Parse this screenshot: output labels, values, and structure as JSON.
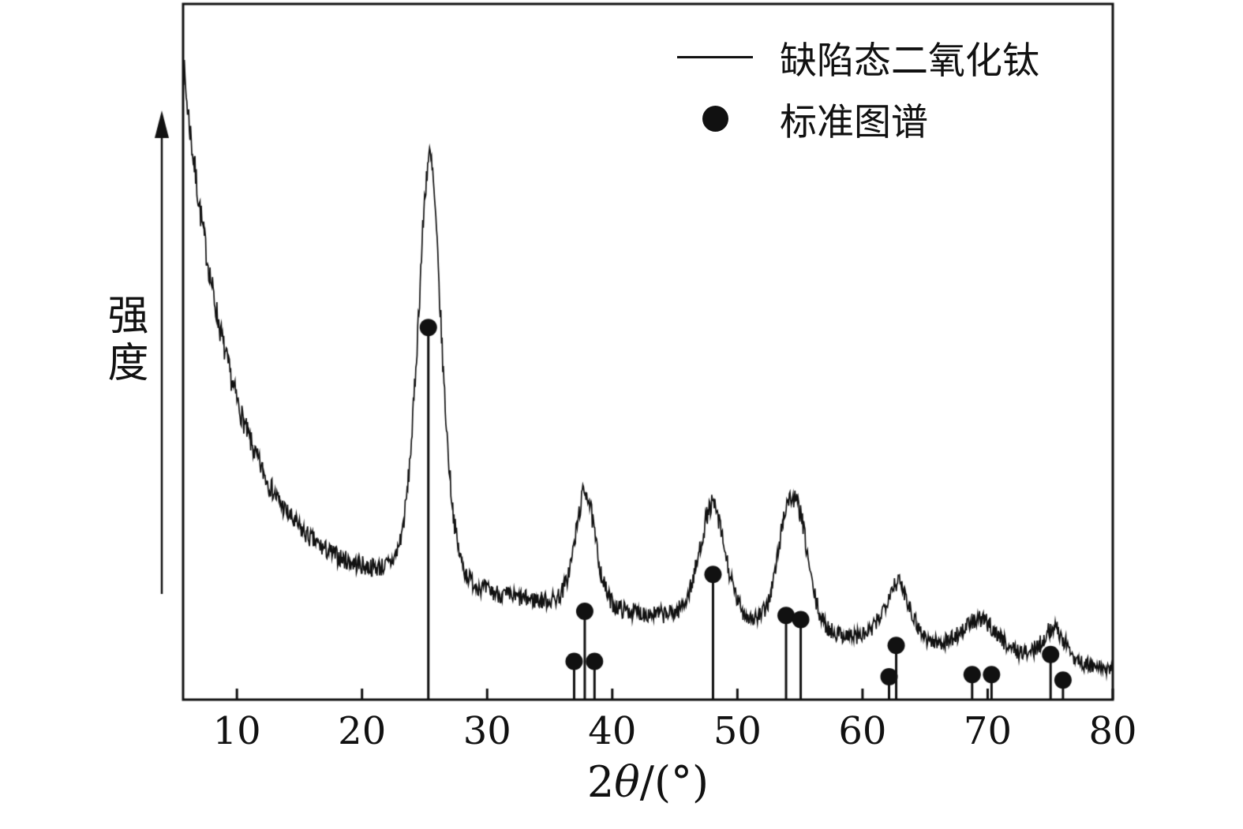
{
  "figure": {
    "background": "#ffffff",
    "frame_color": "#111111"
  },
  "chart_data": {
    "type": "line",
    "title": "",
    "xlabel": {
      "pre": "2",
      "sym": "θ",
      "post": "/(°)"
    },
    "ylabel": "强度",
    "xlim": [
      5.7,
      80
    ],
    "ylim": [
      0,
      100
    ],
    "x_ticks": [
      10,
      20,
      30,
      40,
      50,
      60,
      70,
      80
    ],
    "grid": false,
    "legend": {
      "position": "top-right",
      "entries": [
        {
          "marker": "line",
          "label": "缺陷态二氧化钛"
        },
        {
          "marker": "circle",
          "label": "标准图谱"
        }
      ]
    },
    "series": [
      {
        "name": "缺陷态二氧化钛",
        "style": "noisy-line",
        "color": "#111111",
        "model": {
          "background": {
            "amp": 72,
            "decay": 4.0,
            "offset": 20.5,
            "slope": -0.205
          },
          "peaks": [
            {
              "center": 25.4,
              "height": 62,
              "width": 1.0
            },
            {
              "center": 37.85,
              "height": 17,
              "width": 0.85
            },
            {
              "center": 48.0,
              "height": 17,
              "width": 1.1
            },
            {
              "center": 53.9,
              "height": 13.5,
              "width": 0.85
            },
            {
              "center": 55.05,
              "height": 12,
              "width": 0.85
            },
            {
              "center": 62.8,
              "height": 9,
              "width": 1.1
            },
            {
              "center": 69.4,
              "height": 5,
              "width": 1.6
            },
            {
              "center": 75.3,
              "height": 5,
              "width": 1.0
            }
          ],
          "noise": {
            "base": 1.1,
            "scale": 0.015,
            "seed": 7,
            "step": 0.05
          }
        }
      },
      {
        "name": "标准图谱",
        "style": "stick-circle",
        "color": "#111111",
        "points": [
          {
            "x": 25.3,
            "y": 53.5
          },
          {
            "x": 36.95,
            "y": 5.5
          },
          {
            "x": 37.8,
            "y": 12.7
          },
          {
            "x": 38.58,
            "y": 5.5
          },
          {
            "x": 48.05,
            "y": 18.0
          },
          {
            "x": 53.89,
            "y": 12.1
          },
          {
            "x": 55.06,
            "y": 11.5
          },
          {
            "x": 62.12,
            "y": 3.3
          },
          {
            "x": 62.69,
            "y": 7.8
          },
          {
            "x": 68.76,
            "y": 3.6
          },
          {
            "x": 70.31,
            "y": 3.6
          },
          {
            "x": 75.03,
            "y": 6.5
          },
          {
            "x": 76.02,
            "y": 2.8
          }
        ]
      }
    ]
  }
}
